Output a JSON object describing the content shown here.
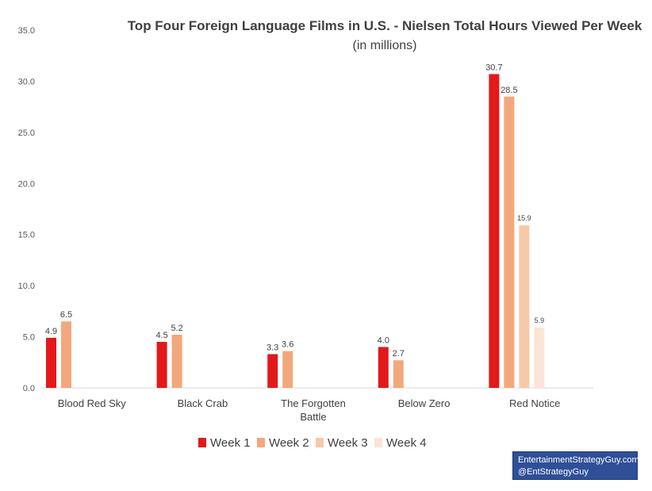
{
  "chart_data": {
    "type": "bar",
    "title": "Top Four Foreign Language Films in U.S. - Nielsen Total Hours Viewed Per Week",
    "subtitle": "(in millions)",
    "xlabel": "",
    "ylabel": "",
    "ylim": [
      0,
      35
    ],
    "yticks": [
      "0.0",
      "5.0",
      "10.0",
      "15.0",
      "20.0",
      "25.0",
      "30.0",
      "35.0"
    ],
    "grid": false,
    "legend_position": "bottom",
    "categories": [
      [
        "Blood Red Sky"
      ],
      [
        "Black Crab"
      ],
      [
        "The Forgotten",
        "Battle"
      ],
      [
        "Below Zero"
      ],
      [
        "Red Notice"
      ]
    ],
    "series": [
      {
        "name": "Week 1",
        "color": "#e3191c",
        "values": [
          4.9,
          4.5,
          3.3,
          4.0,
          30.7
        ],
        "labels": [
          "4.9",
          "4.5",
          "3.3",
          "4.0",
          "30.7"
        ]
      },
      {
        "name": "Week 2",
        "color": "#f2a87c",
        "values": [
          6.5,
          5.2,
          3.6,
          2.7,
          28.5
        ],
        "labels": [
          "6.5",
          "5.2",
          "3.6",
          "2.7",
          "28.5"
        ]
      },
      {
        "name": "Week 3",
        "color": "#f7c9a9",
        "values": [
          null,
          null,
          null,
          null,
          15.9
        ],
        "labels": [
          null,
          null,
          null,
          null,
          "15.9"
        ]
      },
      {
        "name": "Week 4",
        "color": "#fce4d6",
        "values": [
          null,
          null,
          null,
          null,
          5.9
        ],
        "labels": [
          null,
          null,
          null,
          null,
          "5.9"
        ]
      }
    ]
  },
  "credit": {
    "line1": "EntertainmentStrategyGuy.com",
    "line2": "@EntStrategyGuy"
  }
}
